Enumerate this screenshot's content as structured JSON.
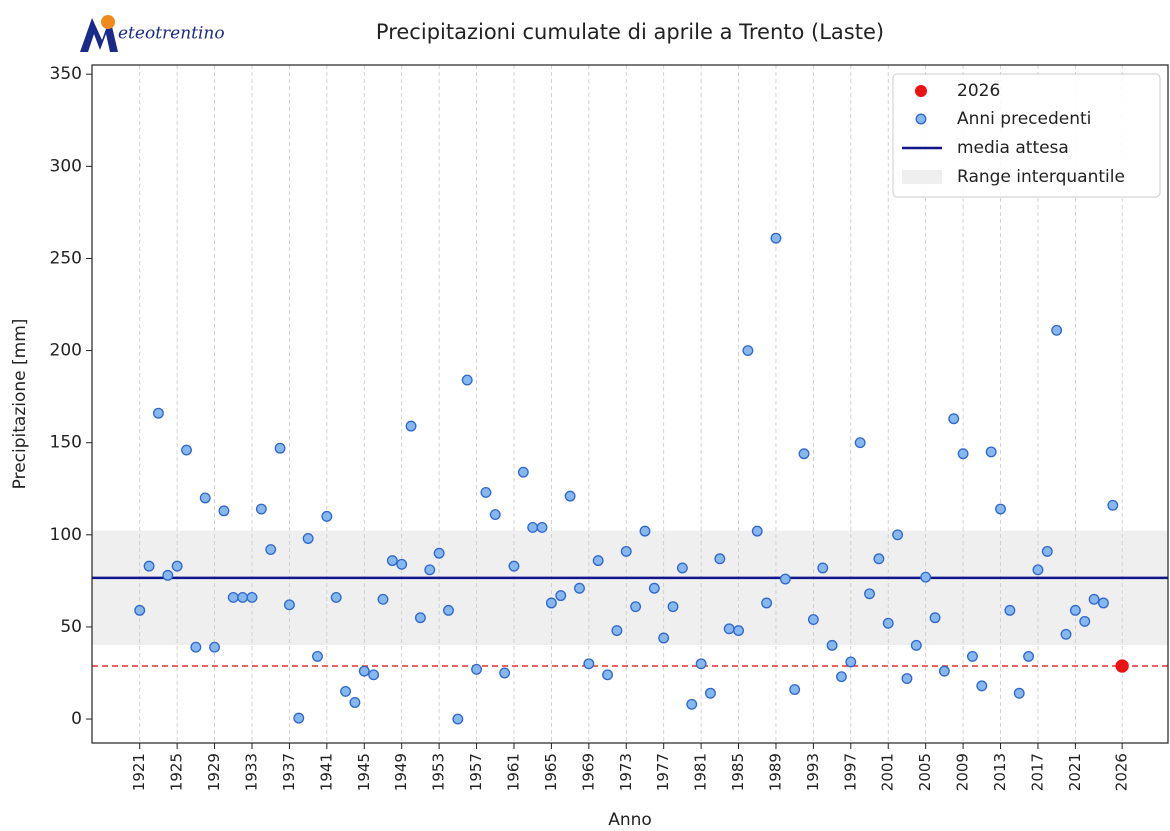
{
  "logo": "eteotrentino",
  "chart_data": {
    "type": "scatter",
    "title": "Precipitazioni cumulate di aprile a Trento (Laste)",
    "xlabel": "Anno",
    "ylabel": "Precipitazione [mm]",
    "xlim": [
      1915.9,
      2030.9
    ],
    "ylim": [
      -13,
      355
    ],
    "xticks": [
      1921,
      1925,
      1929,
      1933,
      1937,
      1941,
      1945,
      1949,
      1953,
      1957,
      1961,
      1965,
      1969,
      1973,
      1977,
      1981,
      1985,
      1989,
      1993,
      1997,
      2001,
      2005,
      2009,
      2013,
      2017,
      2021,
      2026
    ],
    "yticks": [
      0,
      50,
      100,
      150,
      200,
      250,
      300,
      350
    ],
    "grid": true,
    "legend": "upper right",
    "series": [
      {
        "name": "2026",
        "color": "#ee1111",
        "edge": "#ee1111",
        "x": [
          2026
        ],
        "values": [
          28.8
        ]
      },
      {
        "name": "Anni precedenti",
        "color": "#86b8ef",
        "edge": "#2f66cc",
        "x": [
          1921,
          1922,
          1923,
          1924,
          1925,
          1926,
          1927,
          1928,
          1929,
          1930,
          1931,
          1932,
          1933,
          1934,
          1935,
          1936,
          1937,
          1938,
          1939,
          1940,
          1941,
          1942,
          1943,
          1944,
          1945,
          1946,
          1947,
          1948,
          1949,
          1950,
          1951,
          1952,
          1953,
          1954,
          1955,
          1956,
          1957,
          1958,
          1959,
          1960,
          1961,
          1962,
          1963,
          1964,
          1965,
          1966,
          1967,
          1968,
          1969,
          1970,
          1971,
          1972,
          1973,
          1974,
          1975,
          1976,
          1977,
          1978,
          1979,
          1980,
          1981,
          1982,
          1983,
          1984,
          1985,
          1986,
          1987,
          1988,
          1989,
          1990,
          1991,
          1992,
          1993,
          1994,
          1995,
          1996,
          1997,
          1998,
          1999,
          2000,
          2001,
          2002,
          2003,
          2004,
          2005,
          2006,
          2007,
          2008,
          2009,
          2010,
          2011,
          2012,
          2013,
          2014,
          2015,
          2016,
          2017,
          2018,
          2019,
          2020,
          2021,
          2022,
          2023,
          2024,
          2025
        ],
        "values": [
          59,
          83,
          166,
          78,
          83,
          146,
          39,
          120,
          39,
          113,
          66,
          66,
          66,
          114,
          92,
          147,
          62,
          0.5,
          98,
          34,
          110,
          66,
          15,
          9,
          26,
          24,
          65,
          86,
          84,
          159,
          55,
          81,
          90,
          59,
          0,
          184,
          27,
          123,
          111,
          25,
          83,
          134,
          104,
          104,
          63,
          67,
          121,
          71,
          30,
          86,
          24,
          48,
          91,
          61,
          102,
          71,
          44,
          61,
          82,
          8,
          30,
          14,
          87,
          49,
          48,
          200,
          102,
          63,
          261,
          76,
          16,
          144,
          54,
          82,
          40,
          23,
          31,
          150,
          68,
          87,
          52,
          100,
          22,
          40,
          77,
          55,
          26,
          163,
          144,
          34,
          18,
          145,
          114,
          59,
          14,
          34,
          81,
          91,
          211,
          46,
          59,
          53,
          65,
          63,
          116
        ]
      }
    ],
    "mean_line": {
      "name": "media attesa",
      "value": 76.6,
      "color": "#10168a"
    },
    "band": {
      "name": "Range interquantile",
      "low": 40.2,
      "high": 102.2,
      "color": "#efefef"
    },
    "reference_line": {
      "value": 28.8,
      "color": "#e03030"
    }
  }
}
